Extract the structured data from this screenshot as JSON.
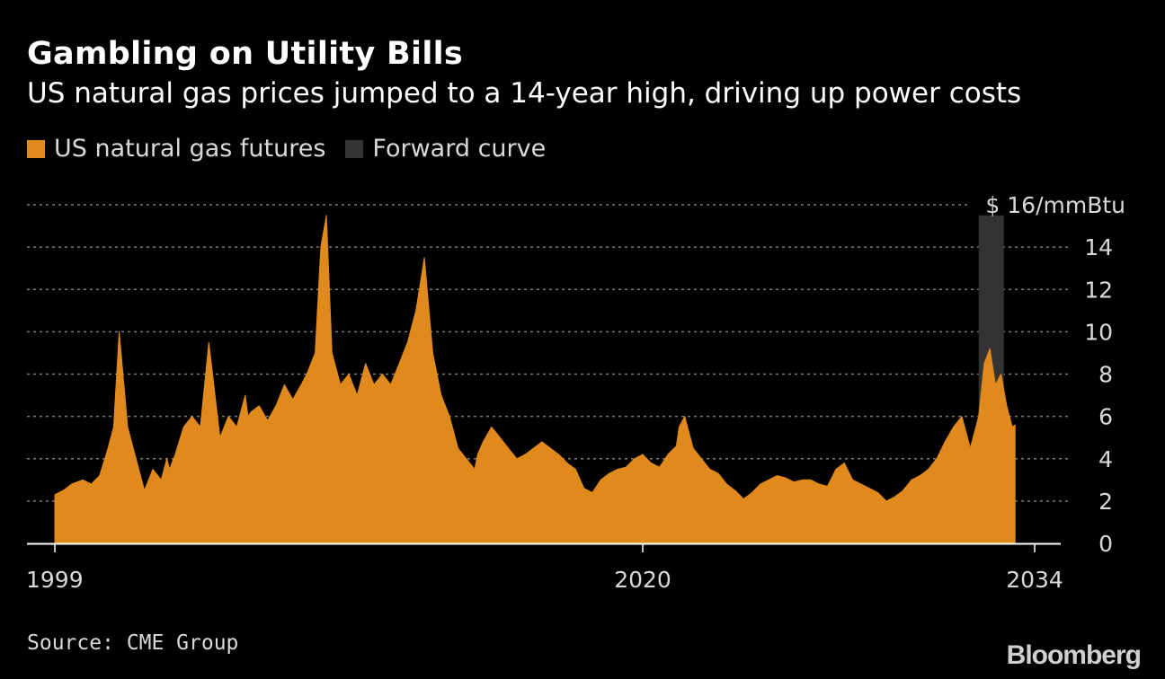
{
  "header": {
    "title": "Gambling on Utility Bills",
    "subtitle": "US natural gas prices jumped to a 14-year high, driving up power costs"
  },
  "legend": {
    "futures_label": "US natural gas futures",
    "forward_label": "Forward curve"
  },
  "footer": {
    "source": "Source: CME Group",
    "brand": "Bloomberg"
  },
  "colors": {
    "futures": "#e08a1e",
    "forward": "#333333",
    "grid": "#7a7a7a",
    "text": "#d9d9d9"
  },
  "chart_data": {
    "type": "area",
    "title": "Gambling on Utility Bills",
    "subtitle": "US natural gas prices jumped to a 14-year high, driving up power costs",
    "unit_label": "$ 16/mmBtu",
    "xlabel": "",
    "ylabel": "$/mmBtu",
    "xlim": [
      1999,
      2034
    ],
    "ylim": [
      0,
      16
    ],
    "y_ticks": [
      0,
      2,
      4,
      6,
      8,
      10,
      12,
      14
    ],
    "x_tick_labels": [
      "1999",
      "2020",
      "2034"
    ],
    "grid": true,
    "legend_position": "top-left",
    "series": [
      {
        "name": "US natural gas futures",
        "x": [
          1999.0,
          1999.3,
          1999.6,
          2000.0,
          2000.3,
          2000.6,
          2000.9,
          2001.0,
          2001.1,
          2001.3,
          2001.6,
          2001.9,
          2002.2,
          2002.5,
          2002.8,
          2003.0,
          2003.1,
          2003.3,
          2003.6,
          2003.9,
          2004.2,
          2004.5,
          2004.9,
          2005.2,
          2005.5,
          2005.8,
          2005.9,
          2006.0,
          2006.3,
          2006.6,
          2006.9,
          2007.2,
          2007.5,
          2007.8,
          2008.0,
          2008.3,
          2008.5,
          2008.7,
          2008.9,
          2009.2,
          2009.5,
          2009.8,
          2010.1,
          2010.4,
          2010.7,
          2011.0,
          2011.3,
          2011.6,
          2011.9,
          2012.2,
          2012.5,
          2012.8,
          2013.1,
          2013.4,
          2013.7,
          2014.0,
          2014.1,
          2014.3,
          2014.6,
          2014.9,
          2015.2,
          2015.5,
          2015.8,
          2016.1,
          2016.4,
          2016.7,
          2017.0,
          2017.3,
          2017.6,
          2017.9,
          2018.2,
          2018.5,
          2018.8,
          2019.1,
          2019.4,
          2019.7,
          2020.0,
          2020.3,
          2020.6,
          2020.9,
          2021.2,
          2021.3,
          2021.5,
          2021.8,
          2022.1,
          2022.4,
          2022.7,
          2023.0,
          2023.3,
          2023.6,
          2023.9,
          2024.2,
          2024.5,
          2024.8,
          2025.1,
          2025.4,
          2025.7,
          2026.0,
          2026.3,
          2026.6,
          2026.9,
          2027.2,
          2027.5,
          2027.8,
          2028.1,
          2028.4,
          2028.7,
          2029.0,
          2029.3,
          2029.6,
          2029.9,
          2030.2,
          2030.5,
          2030.8,
          2031.1,
          2031.4,
          2031.7,
          2032.0,
          2032.2,
          2032.4,
          2032.6,
          2032.8,
          2033.0,
          2033.2,
          2033.3
        ],
        "values": [
          2.3,
          2.5,
          2.8,
          3.0,
          2.8,
          3.2,
          4.5,
          5.0,
          5.5,
          10.0,
          5.5,
          4.0,
          2.5,
          3.5,
          3.0,
          4.0,
          3.5,
          4.2,
          5.5,
          6.0,
          5.5,
          9.5,
          5.0,
          6.0,
          5.5,
          7.0,
          6.0,
          6.2,
          6.5,
          5.8,
          6.5,
          7.5,
          6.8,
          7.5,
          8.0,
          9.0,
          14.0,
          15.5,
          9.0,
          7.5,
          8.0,
          7.0,
          8.5,
          7.5,
          8.0,
          7.5,
          8.5,
          9.5,
          11.0,
          13.5,
          9.0,
          7.0,
          6.0,
          4.5,
          4.0,
          3.5,
          4.2,
          4.8,
          5.5,
          5.0,
          4.5,
          4.0,
          4.2,
          4.5,
          4.8,
          4.5,
          4.2,
          3.8,
          3.5,
          2.6,
          2.4,
          3.0,
          3.3,
          3.5,
          3.6,
          4.0,
          4.2,
          3.8,
          3.6,
          4.2,
          4.6,
          5.5,
          6.0,
          4.5,
          4.0,
          3.5,
          3.3,
          2.8,
          2.5,
          2.1,
          2.4,
          2.8,
          3.0,
          3.2,
          3.1,
          2.9,
          3.0,
          3.0,
          2.8,
          2.7,
          3.5,
          3.8,
          3.0,
          2.8,
          2.6,
          2.4,
          2.0,
          2.2,
          2.5,
          3.0,
          3.2,
          3.5,
          4.0,
          4.8,
          5.5,
          6.0,
          4.5,
          6.0,
          8.5,
          9.2,
          7.5,
          8.0,
          6.5,
          5.5,
          5.6
        ],
        "color": "#e08a1e"
      },
      {
        "name": "Forward curve",
        "x": [
          2032.0,
          2032.9
        ],
        "values": [
          15.5,
          15.5
        ],
        "note": "shaded vertical region marking the forward curve period",
        "color": "#333333"
      }
    ]
  }
}
